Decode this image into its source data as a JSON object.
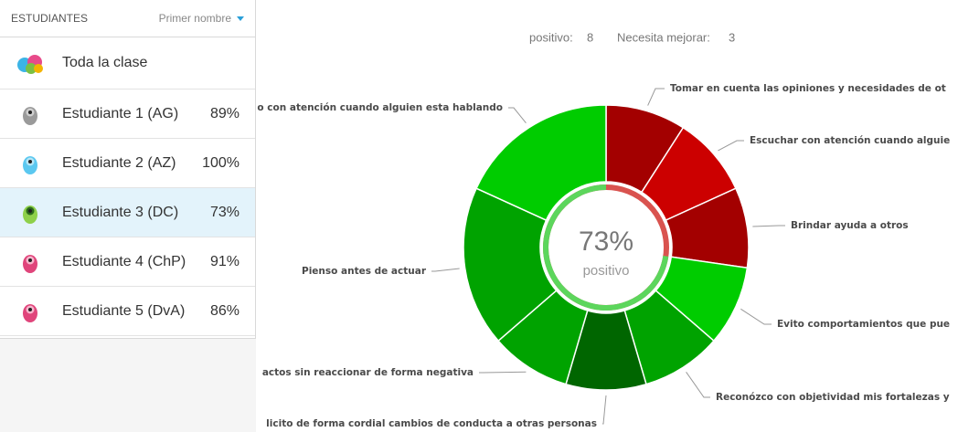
{
  "sidebar": {
    "header": "ESTUDIANTES",
    "sort_label": "Primer nombre",
    "whole_class": "Toda la clase",
    "students": [
      {
        "name": "Estudiante 1 (AG)",
        "percent": "89%"
      },
      {
        "name": "Estudiante 2 (AZ)",
        "percent": "100%"
      },
      {
        "name": "Estudiante 3 (DC)",
        "percent": "73%"
      },
      {
        "name": "Estudiante 4 (ChP)",
        "percent": "91%"
      },
      {
        "name": "Estudiante 5 (DvA)",
        "percent": "86%"
      }
    ]
  },
  "summary": {
    "positive_label": "positivo:",
    "positive_count": 8,
    "improve_label": "Necesita mejorar:",
    "improve_count": 3
  },
  "chart_data": {
    "type": "donut",
    "center_value": "73%",
    "center_label": "positivo",
    "categories": [
      "Tomar en cuenta las opiniones y necesidades de ot",
      "Escuchar con atención cuando alguie",
      "Brindar ayuda a otros",
      "Evito comportamientos que pue",
      "Reconózco con objetividad mis fortalezas y",
      "licito de forma cordial cambios de conducta a otras personas",
      "actos sin reaccionar de forma negativa",
      "Pienso antes de actuar",
      "o con atención cuando alguien esta hablando"
    ],
    "values": [
      1,
      1,
      1,
      1,
      1,
      1,
      1,
      2,
      2
    ],
    "colors": [
      "#a30000",
      "#cc0000",
      "#a30000",
      "#00cc00",
      "#00a300",
      "#006600",
      "#00a300",
      "#00a300",
      "#00cc00"
    ]
  }
}
